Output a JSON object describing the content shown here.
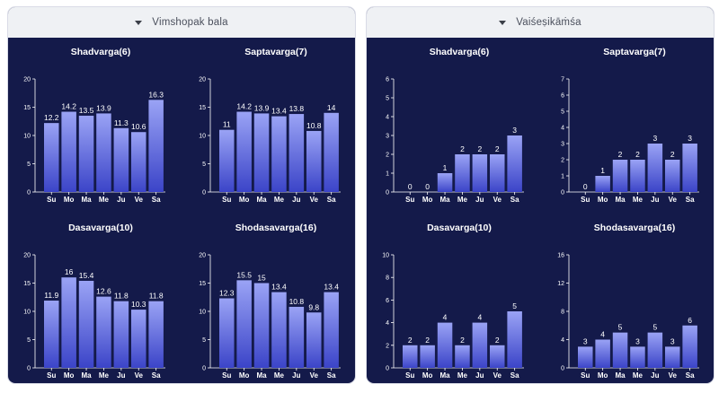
{
  "panels": [
    {
      "header": "Vimshopak bala",
      "icon": "caret-down-icon"
    },
    {
      "header": "Vaiśeṣikāṁśa",
      "icon": "caret-down-icon"
    }
  ],
  "colors": {
    "panel_bg": "#141a4a",
    "header_bg": "#eff1f4",
    "bar_top": "#9aa3f5",
    "bar_bottom": "#3b44c8",
    "text": "#ffffff"
  },
  "chart_data": [
    {
      "panel": 0,
      "type": "bar",
      "title": "Shadvarga(6)",
      "categories": [
        "Su",
        "Mo",
        "Ma",
        "Me",
        "Ju",
        "Ve",
        "Sa"
      ],
      "values": [
        12.2,
        14.2,
        13.5,
        13.9,
        11.3,
        10.6,
        16.3
      ],
      "labels": [
        "12.2",
        "14.2",
        "13.5",
        "13.9",
        "11.3",
        "10.6",
        "16.3"
      ],
      "ylim": [
        0,
        20
      ],
      "yticks": [
        0,
        5,
        10,
        15,
        20
      ]
    },
    {
      "panel": 0,
      "type": "bar",
      "title": "Saptavarga(7)",
      "categories": [
        "Su",
        "Mo",
        "Ma",
        "Me",
        "Ju",
        "Ve",
        "Sa"
      ],
      "values": [
        11,
        14.2,
        13.9,
        13.4,
        13.8,
        10.8,
        14
      ],
      "labels": [
        "11",
        "14.2",
        "13.9",
        "13.4",
        "13.8",
        "10.8",
        "14"
      ],
      "ylim": [
        0,
        20
      ],
      "yticks": [
        0,
        5,
        10,
        15,
        20
      ]
    },
    {
      "panel": 0,
      "type": "bar",
      "title": "Dasavarga(10)",
      "categories": [
        "Su",
        "Mo",
        "Ma",
        "Me",
        "Ju",
        "Ve",
        "Sa"
      ],
      "values": [
        11.9,
        16,
        15.4,
        12.6,
        11.8,
        10.3,
        11.8
      ],
      "labels": [
        "11.9",
        "16",
        "15.4",
        "12.6",
        "11.8",
        "10.3",
        "11.8"
      ],
      "ylim": [
        0,
        20
      ],
      "yticks": [
        0,
        5,
        10,
        15,
        20
      ]
    },
    {
      "panel": 0,
      "type": "bar",
      "title": "Shodasavarga(16)",
      "categories": [
        "Su",
        "Mo",
        "Ma",
        "Me",
        "Ju",
        "Ve",
        "Sa"
      ],
      "values": [
        12.3,
        15.5,
        15,
        13.4,
        10.8,
        9.8,
        13.4
      ],
      "labels": [
        "12.3",
        "15.5",
        "15",
        "13.4",
        "10.8",
        "9.8",
        "13.4"
      ],
      "ylim": [
        0,
        20
      ],
      "yticks": [
        0,
        5,
        10,
        15,
        20
      ]
    },
    {
      "panel": 1,
      "type": "bar",
      "title": "Shadvarga(6)",
      "categories": [
        "Su",
        "Mo",
        "Ma",
        "Me",
        "Ju",
        "Ve",
        "Sa"
      ],
      "values": [
        0,
        0,
        1,
        2,
        2,
        2,
        3
      ],
      "labels": [
        "0",
        "0",
        "1",
        "2",
        "2",
        "2",
        "3"
      ],
      "ylim": [
        0,
        6
      ],
      "yticks": [
        0,
        1,
        2,
        3,
        4,
        5,
        6
      ]
    },
    {
      "panel": 1,
      "type": "bar",
      "title": "Saptavarga(7)",
      "categories": [
        "Su",
        "Mo",
        "Ma",
        "Me",
        "Ju",
        "Ve",
        "Sa"
      ],
      "values": [
        0,
        1,
        2,
        2,
        3,
        2,
        3
      ],
      "labels": [
        "0",
        "1",
        "2",
        "2",
        "3",
        "2",
        "3"
      ],
      "ylim": [
        0,
        7
      ],
      "yticks": [
        0,
        1,
        2,
        3,
        4,
        5,
        6,
        7
      ]
    },
    {
      "panel": 1,
      "type": "bar",
      "title": "Dasavarga(10)",
      "categories": [
        "Su",
        "Mo",
        "Ma",
        "Me",
        "Ju",
        "Ve",
        "Sa"
      ],
      "values": [
        2,
        2,
        4,
        2,
        4,
        2,
        5
      ],
      "labels": [
        "2",
        "2",
        "4",
        "2",
        "4",
        "2",
        "5"
      ],
      "ylim": [
        0,
        10
      ],
      "yticks": [
        0,
        2,
        4,
        6,
        8,
        10
      ]
    },
    {
      "panel": 1,
      "type": "bar",
      "title": "Shodasavarga(16)",
      "categories": [
        "Su",
        "Mo",
        "Ma",
        "Me",
        "Ju",
        "Ve",
        "Sa"
      ],
      "values": [
        3,
        4,
        5,
        3,
        5,
        3,
        6
      ],
      "labels": [
        "3",
        "4",
        "5",
        "3",
        "5",
        "3",
        "6"
      ],
      "ylim": [
        0,
        16
      ],
      "yticks": [
        0,
        4,
        8,
        12,
        16
      ]
    }
  ]
}
